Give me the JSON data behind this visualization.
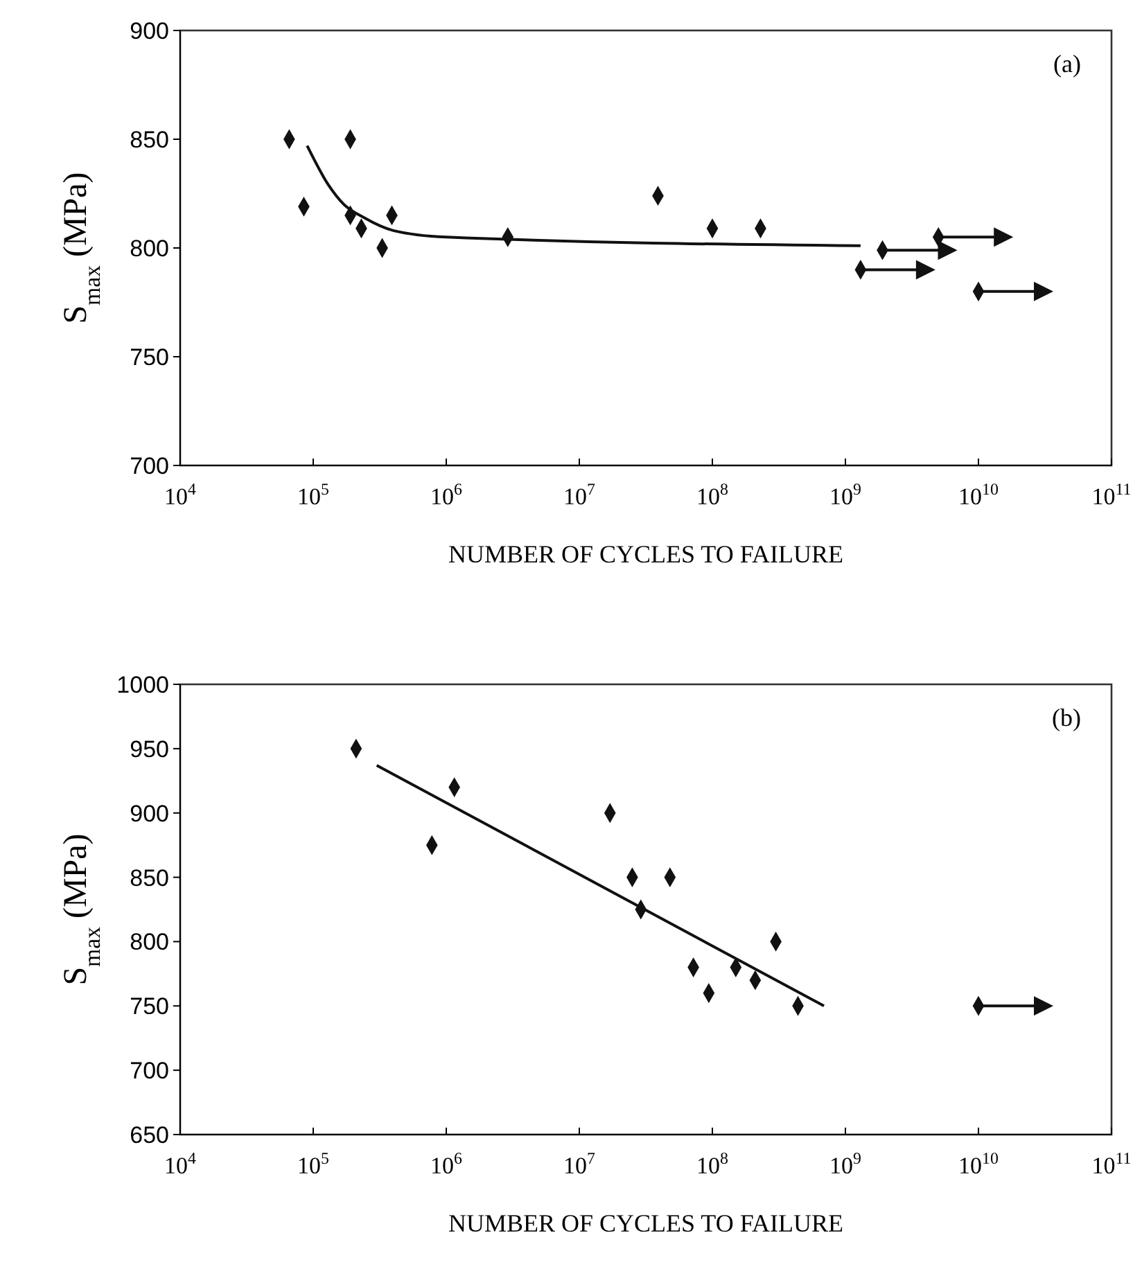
{
  "chart_data": [
    {
      "type": "scatter",
      "ylabel": "S$_{max}$ (MPa)",
      "xlabel": "NUMBER OF CYCLES TO FAILURE",
      "log": "x",
      "marker": "diamond",
      "grid": false,
      "xlim": [
        10000,
        100000000000
      ],
      "xticks": [
        {
          "value": 10000,
          "label": "10$^{4}$"
        },
        {
          "value": 100000,
          "label": "10$^{5}$"
        },
        {
          "value": 1000000,
          "label": "10$^{6}$"
        },
        {
          "value": 10000000,
          "label": "10$^{7}$"
        },
        {
          "value": 100000000,
          "label": "10$^{8}$"
        },
        {
          "value": 1000000000,
          "label": "10$^{9}$"
        },
        {
          "value": 10000000000,
          "label": "10$^{10}$"
        },
        {
          "value": 100000000000,
          "label": "10$^{11}$"
        }
      ],
      "ylim": [
        700,
        900
      ],
      "yticks": [
        700,
        750,
        800,
        850,
        900
      ],
      "annotations": [
        "(a)"
      ],
      "series": [
        {
          "color": "#111111",
          "x": [
            66000,
            190000,
            85000,
            190000,
            230000,
            390000,
            330000,
            2900000,
            39000000,
            100000000,
            230000000
          ],
          "values": [
            850,
            850,
            819,
            815,
            809,
            815,
            800,
            805,
            824,
            809,
            809
          ]
        },
        {
          "color": "#111111",
          "x": [
            1900000000,
            5000000000,
            1300000000,
            10000000000
          ],
          "values": [
            799,
            805,
            790,
            780
          ]
        },
        {
          "type": "line",
          "color": "#111111",
          "marker": "none",
          "x": [
            90000,
            130000,
            170000,
            240000,
            400000,
            1000000,
            1300000000
          ],
          "values": [
            847,
            829,
            820,
            814,
            808,
            805,
            801
          ]
        }
      ]
    },
    {
      "type": "scatter",
      "ylabel": "S$_{max}$ (MPa)",
      "xlabel": "NUMBER OF CYCLES TO FAILURE",
      "log": "x",
      "marker": "diamond",
      "grid": false,
      "xlim": [
        10000,
        100000000000
      ],
      "xticks": [
        {
          "value": 10000,
          "label": "10$^{4}$"
        },
        {
          "value": 100000,
          "label": "10$^{5}$"
        },
        {
          "value": 1000000,
          "label": "10$^{6}$"
        },
        {
          "value": 10000000,
          "label": "10$^{7}$"
        },
        {
          "value": 100000000,
          "label": "10$^{8}$"
        },
        {
          "value": 1000000000,
          "label": "10$^{9}$"
        },
        {
          "value": 10000000000,
          "label": "10$^{10}$"
        },
        {
          "value": 100000000000,
          "label": "10$^{11}$"
        }
      ],
      "ylim": [
        650,
        1000
      ],
      "yticks": [
        650,
        700,
        750,
        800,
        850,
        900,
        950,
        1000
      ],
      "annotations": [
        "(b)"
      ],
      "series": [
        {
          "color": "#111111",
          "x": [
            210000,
            1150000,
            780000,
            17000000,
            25000000,
            48000000,
            29000000,
            72000000,
            94000000,
            150000000,
            210000000,
            300000000,
            440000000
          ],
          "values": [
            950,
            920,
            875,
            900,
            850,
            850,
            825,
            780,
            760,
            780,
            770,
            800,
            750
          ]
        },
        {
          "color": "#111111",
          "x": [
            10000000000
          ],
          "values": [
            750
          ]
        },
        {
          "type": "line",
          "color": "#111111",
          "marker": "none",
          "x": [
            300000,
            690000000
          ],
          "values": [
            937,
            750
          ]
        }
      ]
    }
  ]
}
